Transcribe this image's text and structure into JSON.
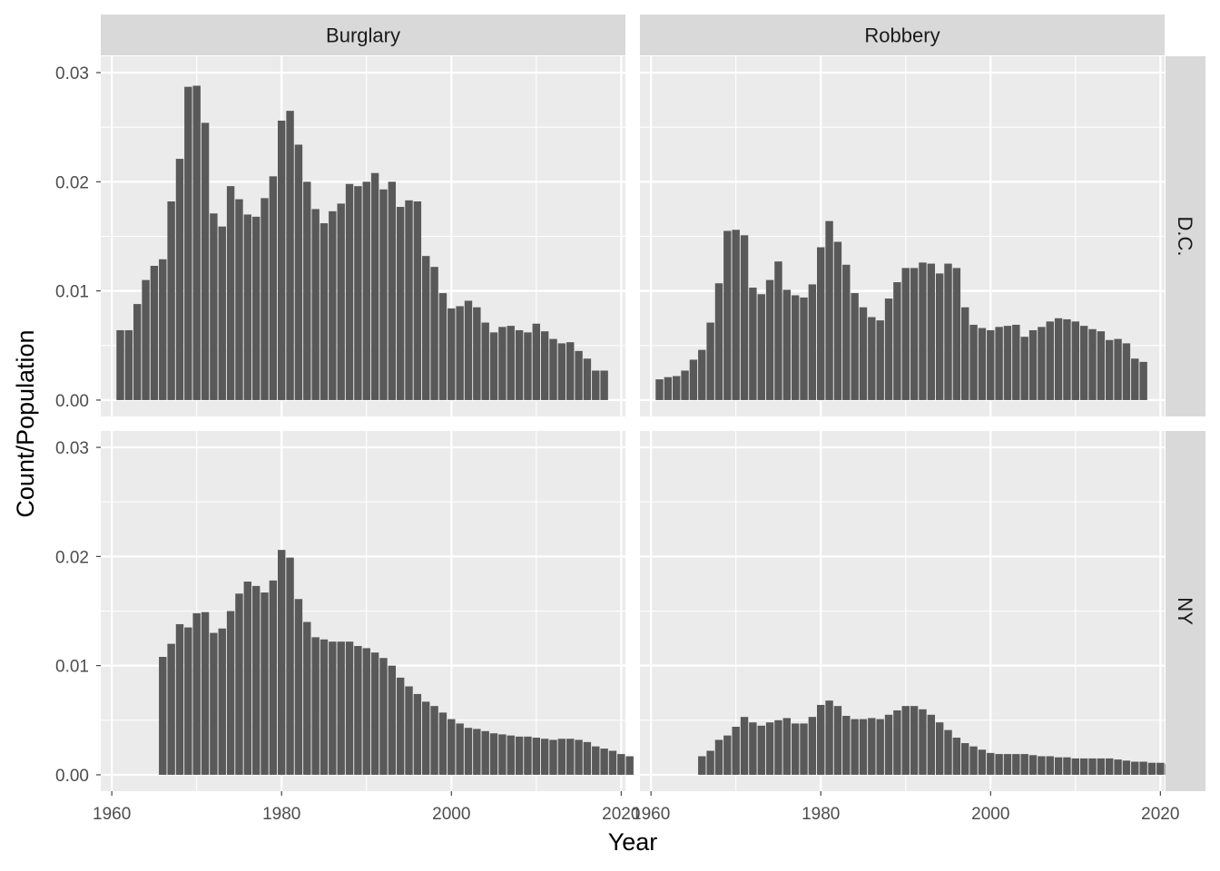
{
  "chart_data": {
    "type": "bar",
    "layout": "facet-grid",
    "xlabel": "Year",
    "ylabel": "Count/Population",
    "xlim": [
      1958.7,
      2020.5
    ],
    "ylim": [
      -0.0015,
      0.0315
    ],
    "x_ticks": [
      "1960",
      "1980",
      "2000",
      "2020"
    ],
    "y_ticks": [
      "0.00",
      "0.01",
      "0.02",
      "0.03"
    ],
    "y_tick_values": [
      0,
      0.01,
      0.02,
      0.03
    ],
    "x_tick_values": [
      1960,
      1980,
      2000,
      2020
    ],
    "columns": [
      "Burglary",
      "Robbery"
    ],
    "rows": [
      "D.C.",
      "NY"
    ],
    "panels": [
      {
        "row": "D.C.",
        "column": "Burglary",
        "start_year": 1961,
        "values": [
          0.0064,
          0.0064,
          0.0088,
          0.011,
          0.0123,
          0.0129,
          0.0182,
          0.0221,
          0.0287,
          0.0288,
          0.0254,
          0.0171,
          0.0159,
          0.0196,
          0.0184,
          0.017,
          0.0168,
          0.0185,
          0.0205,
          0.0256,
          0.0265,
          0.0234,
          0.02,
          0.0175,
          0.0162,
          0.0173,
          0.018,
          0.0198,
          0.0196,
          0.02,
          0.0208,
          0.0193,
          0.02,
          0.0177,
          0.0183,
          0.0182,
          0.0132,
          0.0122,
          0.0098,
          0.0084,
          0.0086,
          0.0091,
          0.0085,
          0.0071,
          0.0062,
          0.0067,
          0.0068,
          0.0064,
          0.0062,
          0.007,
          0.0063,
          0.0056,
          0.0052,
          0.0053,
          0.0045,
          0.0038,
          0.0027,
          0.0027
        ]
      },
      {
        "row": "D.C.",
        "column": "Robbery",
        "start_year": 1961,
        "values": [
          0.0019,
          0.0021,
          0.0022,
          0.0027,
          0.0037,
          0.0046,
          0.0071,
          0.0107,
          0.0155,
          0.0156,
          0.0151,
          0.0103,
          0.0097,
          0.011,
          0.0127,
          0.0101,
          0.0096,
          0.0094,
          0.0106,
          0.014,
          0.0164,
          0.0145,
          0.0124,
          0.0098,
          0.0085,
          0.0076,
          0.0073,
          0.0093,
          0.0108,
          0.0121,
          0.0121,
          0.0126,
          0.0125,
          0.0116,
          0.0125,
          0.0121,
          0.0085,
          0.0069,
          0.0066,
          0.0064,
          0.0067,
          0.0068,
          0.0069,
          0.0058,
          0.0064,
          0.0067,
          0.0072,
          0.0075,
          0.0074,
          0.0072,
          0.0068,
          0.0065,
          0.0063,
          0.0055,
          0.0056,
          0.0052,
          0.0038,
          0.0035
        ]
      },
      {
        "row": "NY",
        "column": "Burglary",
        "start_year": 1966,
        "values": [
          0.0108,
          0.012,
          0.0138,
          0.0135,
          0.0148,
          0.0149,
          0.013,
          0.0134,
          0.015,
          0.0166,
          0.0177,
          0.0173,
          0.0167,
          0.0178,
          0.0206,
          0.0199,
          0.0161,
          0.014,
          0.0126,
          0.0124,
          0.0122,
          0.0122,
          0.0122,
          0.0118,
          0.0116,
          0.0112,
          0.0107,
          0.01,
          0.0089,
          0.0081,
          0.0074,
          0.0067,
          0.0063,
          0.0057,
          0.0051,
          0.0047,
          0.0043,
          0.0042,
          0.004,
          0.0038,
          0.0037,
          0.0036,
          0.0035,
          0.0035,
          0.0034,
          0.0033,
          0.0032,
          0.0033,
          0.0033,
          0.0032,
          0.003,
          0.0026,
          0.0024,
          0.0022,
          0.0019,
          0.0017
        ]
      },
      {
        "row": "NY",
        "column": "Robbery",
        "start_year": 1966,
        "values": [
          0.0017,
          0.0022,
          0.0032,
          0.0036,
          0.0044,
          0.0053,
          0.0048,
          0.0045,
          0.0048,
          0.005,
          0.0052,
          0.0047,
          0.0047,
          0.0053,
          0.0064,
          0.0068,
          0.0063,
          0.0054,
          0.0051,
          0.0051,
          0.0052,
          0.0051,
          0.0055,
          0.0059,
          0.0063,
          0.0063,
          0.006,
          0.0055,
          0.0048,
          0.0041,
          0.0034,
          0.0029,
          0.0026,
          0.0023,
          0.002,
          0.0019,
          0.0019,
          0.0019,
          0.0019,
          0.0018,
          0.0017,
          0.0017,
          0.0016,
          0.0016,
          0.0015,
          0.0015,
          0.0015,
          0.0015,
          0.0015,
          0.0014,
          0.0013,
          0.0012,
          0.0012,
          0.0011,
          0.0011,
          0.001
        ]
      }
    ]
  }
}
